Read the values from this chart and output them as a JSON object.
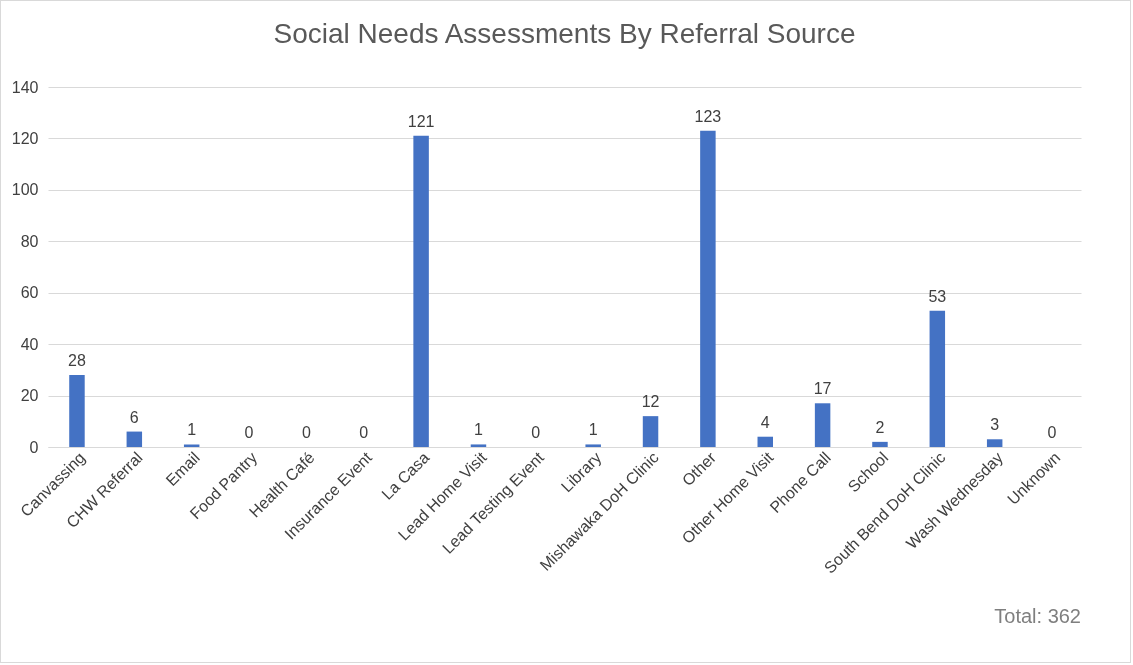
{
  "chart_data": {
    "type": "bar",
    "title": "Social Needs Assessments By Referral Source",
    "categories": [
      "Canvassing",
      "CHW Referral",
      "Email",
      "Food Pantry",
      "Health Café",
      "Insurance Event",
      "La Casa",
      "Lead Home Visit",
      "Lead Testing Event",
      "Library",
      "Mishawaka DoH Clinic",
      "Other",
      "Other Home Visit",
      "Phone Call",
      "School",
      "South Bend DoH Clinic",
      "Wash Wednesday",
      "Unknown"
    ],
    "values": [
      28,
      6,
      1,
      0,
      0,
      0,
      121,
      1,
      0,
      1,
      12,
      123,
      4,
      17,
      2,
      53,
      3,
      0
    ],
    "color": "#4472c4",
    "ylim": [
      0,
      140
    ],
    "yticks": [
      0,
      20,
      40,
      60,
      80,
      100,
      120,
      140
    ],
    "grid": "y",
    "data_labels": true,
    "annotations": [
      "Total: 362"
    ]
  }
}
